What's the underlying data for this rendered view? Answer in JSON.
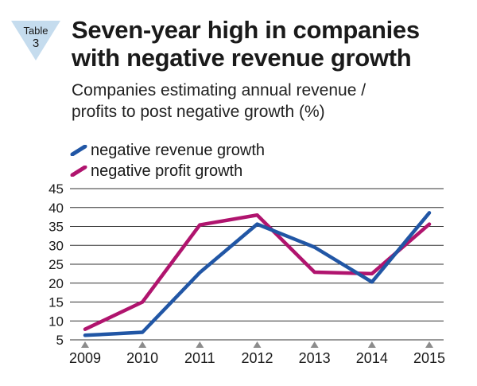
{
  "badge": {
    "line1": "Table",
    "line2": "3",
    "color": "#c5dcee"
  },
  "header": {
    "title_line1": "Seven-year high in companies",
    "title_line2": "with negative revenue growth",
    "subtitle_line1": "Companies estimating annual revenue /",
    "subtitle_line2": "profits to post negative growth (%)"
  },
  "chart_data": {
    "type": "line",
    "x": [
      "2009",
      "2010",
      "2011",
      "2012",
      "2013",
      "2014",
      "2015"
    ],
    "ylim": [
      5,
      45
    ],
    "yticks": [
      5,
      10,
      15,
      20,
      25,
      30,
      35,
      40,
      45
    ],
    "grid": true,
    "legend_position": "top-left",
    "series": [
      {
        "name": "negative revenue growth",
        "color": "#2156a5",
        "values": [
          6.2,
          7.0,
          22.8,
          35.6,
          29.5,
          20.3,
          38.6
        ]
      },
      {
        "name": "negative profit growth",
        "color": "#b0146e",
        "values": [
          7.8,
          15.0,
          35.4,
          38.0,
          22.9,
          22.5,
          35.6
        ]
      }
    ],
    "marker_color": "#8c8c8c"
  }
}
